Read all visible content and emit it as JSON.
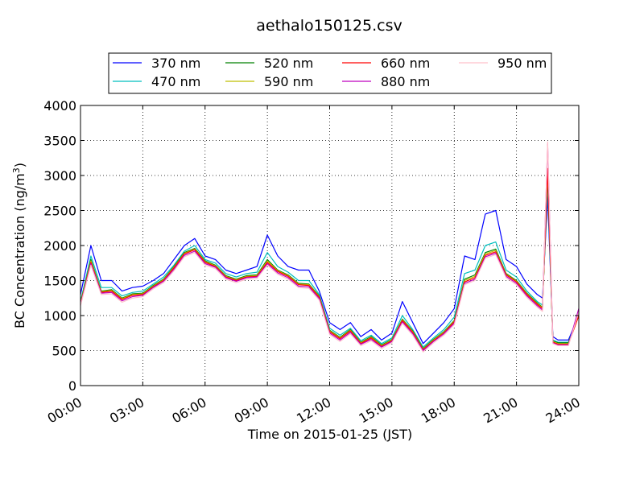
{
  "chart_data": {
    "type": "line",
    "title": "aethalo150125.csv",
    "xlabel": "Time on 2015-01-25 (JST)",
    "ylabel": "BC Concentration (ng/m",
    "ylabel_superscript": "3",
    "ylabel_suffix": ")",
    "xlim": [
      "00:00",
      "24:00"
    ],
    "ylim": [
      0,
      4000
    ],
    "xtick_labels": [
      "00:00",
      "03:00",
      "06:00",
      "09:00",
      "12:00",
      "15:00",
      "18:00",
      "21:00",
      "24:00"
    ],
    "ytick_labels": [
      "0",
      "500",
      "1000",
      "1500",
      "2000",
      "2500",
      "3000",
      "3500",
      "4000"
    ],
    "grid": true,
    "legend_position": "top-center, above plot",
    "x": [
      "00:00",
      "00:30",
      "01:00",
      "01:30",
      "02:00",
      "02:30",
      "03:00",
      "03:30",
      "04:00",
      "04:30",
      "05:00",
      "05:30",
      "06:00",
      "06:30",
      "07:00",
      "07:30",
      "08:00",
      "08:30",
      "09:00",
      "09:30",
      "10:00",
      "10:30",
      "11:00",
      "11:30",
      "12:00",
      "12:30",
      "13:00",
      "13:30",
      "14:00",
      "14:30",
      "15:00",
      "15:30",
      "16:00",
      "16:30",
      "17:00",
      "17:30",
      "18:00",
      "18:30",
      "19:00",
      "19:30",
      "20:00",
      "20:30",
      "21:00",
      "21:30",
      "22:00",
      "22:15",
      "22:30",
      "22:45",
      "23:00",
      "23:30",
      "24:00"
    ],
    "series": [
      {
        "name": "370 nm",
        "color": "#0000ff",
        "values": [
          1300,
          2000,
          1500,
          1500,
          1350,
          1400,
          1420,
          1500,
          1600,
          1800,
          2000,
          2100,
          1850,
          1800,
          1650,
          1600,
          1650,
          1700,
          2150,
          1850,
          1700,
          1650,
          1650,
          1350,
          900,
          800,
          900,
          700,
          800,
          650,
          750,
          1200,
          900,
          600,
          750,
          900,
          1100,
          1850,
          1800,
          2450,
          2500,
          1800,
          1700,
          1450,
          1300,
          1250,
          2700,
          700,
          650,
          650,
          1000
        ]
      },
      {
        "name": "470 nm",
        "color": "#00bfbf",
        "values": [
          1200,
          1850,
          1400,
          1400,
          1280,
          1330,
          1350,
          1450,
          1550,
          1720,
          1920,
          2000,
          1800,
          1750,
          1600,
          1550,
          1600,
          1620,
          1900,
          1700,
          1620,
          1500,
          1500,
          1300,
          820,
          720,
          820,
          640,
          720,
          600,
          680,
          1000,
          800,
          550,
          680,
          800,
          980,
          1600,
          1650,
          2000,
          2050,
          1650,
          1550,
          1350,
          1200,
          1150,
          2900,
          650,
          620,
          620,
          1000
        ]
      },
      {
        "name": "520 nm",
        "color": "#008000",
        "values": [
          1180,
          1800,
          1350,
          1370,
          1250,
          1310,
          1320,
          1430,
          1520,
          1700,
          1900,
          1960,
          1780,
          1720,
          1570,
          1520,
          1570,
          1580,
          1800,
          1650,
          1580,
          1460,
          1450,
          1280,
          790,
          690,
          800,
          620,
          700,
          580,
          660,
          950,
          780,
          530,
          660,
          770,
          930,
          1520,
          1580,
          1900,
          1950,
          1600,
          1500,
          1320,
          1180,
          1120,
          3000,
          640,
          610,
          610,
          1000
        ]
      },
      {
        "name": "590 nm",
        "color": "#bfbf00",
        "values": [
          1170,
          1780,
          1340,
          1360,
          1240,
          1300,
          1310,
          1420,
          1510,
          1690,
          1890,
          1950,
          1770,
          1710,
          1560,
          1510,
          1560,
          1570,
          1780,
          1640,
          1570,
          1450,
          1440,
          1270,
          780,
          680,
          790,
          610,
          690,
          570,
          650,
          940,
          770,
          520,
          650,
          760,
          920,
          1500,
          1560,
          1880,
          1930,
          1590,
          1490,
          1310,
          1170,
          1110,
          3050,
          630,
          600,
          600,
          1000
        ]
      },
      {
        "name": "660 nm",
        "color": "#ff0000",
        "values": [
          1160,
          1760,
          1330,
          1350,
          1230,
          1290,
          1300,
          1410,
          1500,
          1680,
          1880,
          1940,
          1760,
          1700,
          1550,
          1500,
          1550,
          1560,
          1760,
          1630,
          1560,
          1440,
          1430,
          1260,
          770,
          670,
          780,
          600,
          680,
          560,
          640,
          930,
          760,
          510,
          640,
          750,
          910,
          1480,
          1540,
          1860,
          1910,
          1580,
          1480,
          1300,
          1160,
          1100,
          3100,
          620,
          590,
          590,
          1000
        ]
      },
      {
        "name": "880 nm",
        "color": "#bf00bf",
        "values": [
          1150,
          1740,
          1320,
          1330,
          1210,
          1270,
          1290,
          1400,
          1490,
          1660,
          1860,
          1920,
          1740,
          1690,
          1540,
          1490,
          1540,
          1550,
          1740,
          1610,
          1540,
          1420,
          1410,
          1240,
          750,
          650,
          760,
          590,
          660,
          550,
          630,
          910,
          740,
          500,
          630,
          740,
          890,
          1460,
          1520,
          1840,
          1890,
          1560,
          1460,
          1280,
          1140,
          1080,
          3450,
          610,
          580,
          580,
          1100
        ]
      },
      {
        "name": "950 nm",
        "color": "#ffc0cb",
        "values": [
          1140,
          1720,
          1300,
          1310,
          1190,
          1250,
          1270,
          1380,
          1470,
          1640,
          1840,
          1900,
          1720,
          1670,
          1520,
          1470,
          1520,
          1530,
          1720,
          1590,
          1520,
          1400,
          1390,
          1220,
          730,
          630,
          740,
          570,
          640,
          530,
          610,
          890,
          720,
          480,
          610,
          720,
          870,
          1440,
          1500,
          1820,
          1870,
          1540,
          1440,
          1260,
          1120,
          1060,
          3480,
          600,
          570,
          570,
          1050
        ]
      }
    ]
  }
}
